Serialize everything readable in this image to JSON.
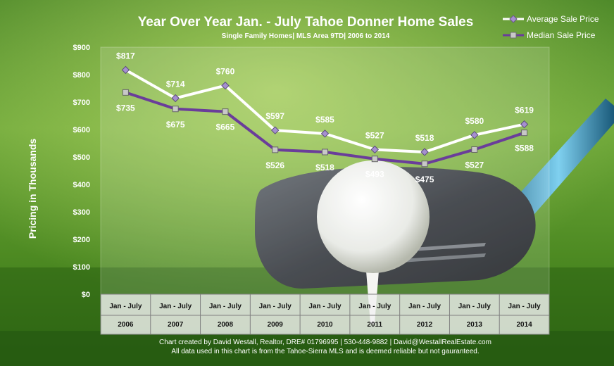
{
  "chart_data": {
    "type": "line",
    "title": "Year Over Year Jan. - July Tahoe Donner Home Sales",
    "subtitle": "Single Family Homes| MLS Area 9TD| 2006 to 2014",
    "ylabel": "Pricing in Thousands",
    "ylim": [
      0,
      900
    ],
    "yticks": [
      "$0",
      "$100",
      "$200",
      "$300",
      "$400",
      "$500",
      "$600",
      "$700",
      "$800",
      "$900"
    ],
    "category_top": "Jan - July",
    "categories": [
      "2006",
      "2007",
      "2008",
      "2009",
      "2010",
      "2011",
      "2012",
      "2013",
      "2014"
    ],
    "series": [
      {
        "name": "Average Sale Price",
        "values": [
          817,
          714,
          760,
          597,
          585,
          527,
          518,
          580,
          619
        ],
        "labels": [
          "$817",
          "$714",
          "$760",
          "$597",
          "$585",
          "$527",
          "$518",
          "$580",
          "$619"
        ],
        "line_color": "#ffffff",
        "marker": "diamond",
        "marker_color": "#a58fd0"
      },
      {
        "name": "Median Sale Price",
        "values": [
          735,
          675,
          665,
          526,
          518,
          493,
          475,
          527,
          588
        ],
        "labels": [
          "$735",
          "$675",
          "$665",
          "$526",
          "$518",
          "$493",
          "$475",
          "$527",
          "$588"
        ],
        "line_color": "#6a3d9a",
        "marker": "square",
        "marker_color": "#c8c8c8"
      }
    ],
    "legend_position": "top-right",
    "grid": false
  },
  "footer": {
    "line1": "Chart created by David Westall, Realtor, DRE# 01796995 | 530-448-9882 | David@WestallRealEstate.com",
    "line2": "All data used in this chart is from the Tahoe-Sierra MLS and is deemed reliable but  not gauranteed."
  }
}
